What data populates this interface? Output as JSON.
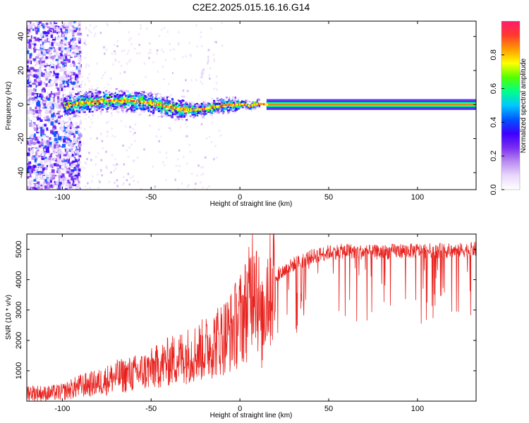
{
  "title": "C2E2.2025.015.16.16.G14",
  "colors": {
    "trace": "#e8231f",
    "frame": "#000000",
    "colormap": [
      "#ffffff",
      "#e9d8fb",
      "#b98af0",
      "#7a2cf0",
      "#3d00ff",
      "#0055ff",
      "#00c8ff",
      "#00ff8a",
      "#55ff00",
      "#ffff00",
      "#ff9b00",
      "#ff3a2e",
      "#ff1a6e"
    ]
  },
  "chart_data": [
    {
      "type": "heatmap",
      "name": "spectrogram",
      "xlabel": "Height of straight line (km)",
      "ylabel": "Frequency (Hz)",
      "xlim": [
        -120,
        133
      ],
      "ylim": [
        -50,
        49
      ],
      "xticks": [
        -100,
        -50,
        0,
        50,
        100
      ],
      "yticks": [
        -40,
        -20,
        0,
        20,
        40
      ],
      "colorbar": {
        "label": "Normalized spectral amplitude",
        "range": [
          0.0,
          1.0
        ],
        "ticks": [
          0.0,
          0.2,
          0.4,
          0.6,
          0.8
        ]
      },
      "ridge_centerline": {
        "x": [
          -98,
          -90,
          -80,
          -70,
          -60,
          -50,
          -40,
          -30,
          -25,
          -20,
          -15,
          -10,
          -5,
          0,
          2,
          5,
          8,
          10,
          15,
          20,
          50,
          100,
          133
        ],
        "y": [
          -1,
          1,
          2,
          2.5,
          2,
          1,
          -1.5,
          -3,
          -3,
          -2.5,
          -1.5,
          -0.5,
          0,
          0,
          0.5,
          -1,
          0,
          0.5,
          0,
          0,
          0,
          0,
          0
        ]
      }
    },
    {
      "type": "line",
      "name": "snr",
      "xlabel": "Height of straight line (km)",
      "ylabel": "SNR (10 * v/v)",
      "xlim": [
        -120,
        133
      ],
      "ylim": [
        0,
        5500
      ],
      "xticks": [
        -100,
        -50,
        0,
        50,
        100
      ],
      "yticks": [
        1000,
        2000,
        3000,
        4000,
        5000
      ],
      "envelope": {
        "x": [
          -120,
          -110,
          -100,
          -90,
          -80,
          -70,
          -60,
          -50,
          -40,
          -30,
          -20,
          -10,
          -5,
          0,
          5,
          8,
          10,
          12,
          15,
          20,
          30,
          40,
          50,
          60,
          70,
          80,
          90,
          100,
          110,
          120,
          133
        ],
        "mean": [
          300,
          250,
          300,
          500,
          600,
          800,
          900,
          1050,
          1300,
          1500,
          1700,
          2100,
          2300,
          2700,
          3200,
          4700,
          3600,
          2300,
          3700,
          4100,
          4500,
          4750,
          4900,
          4950,
          4900,
          4900,
          4950,
          4950,
          4950,
          4950,
          5000
        ]
      }
    }
  ]
}
